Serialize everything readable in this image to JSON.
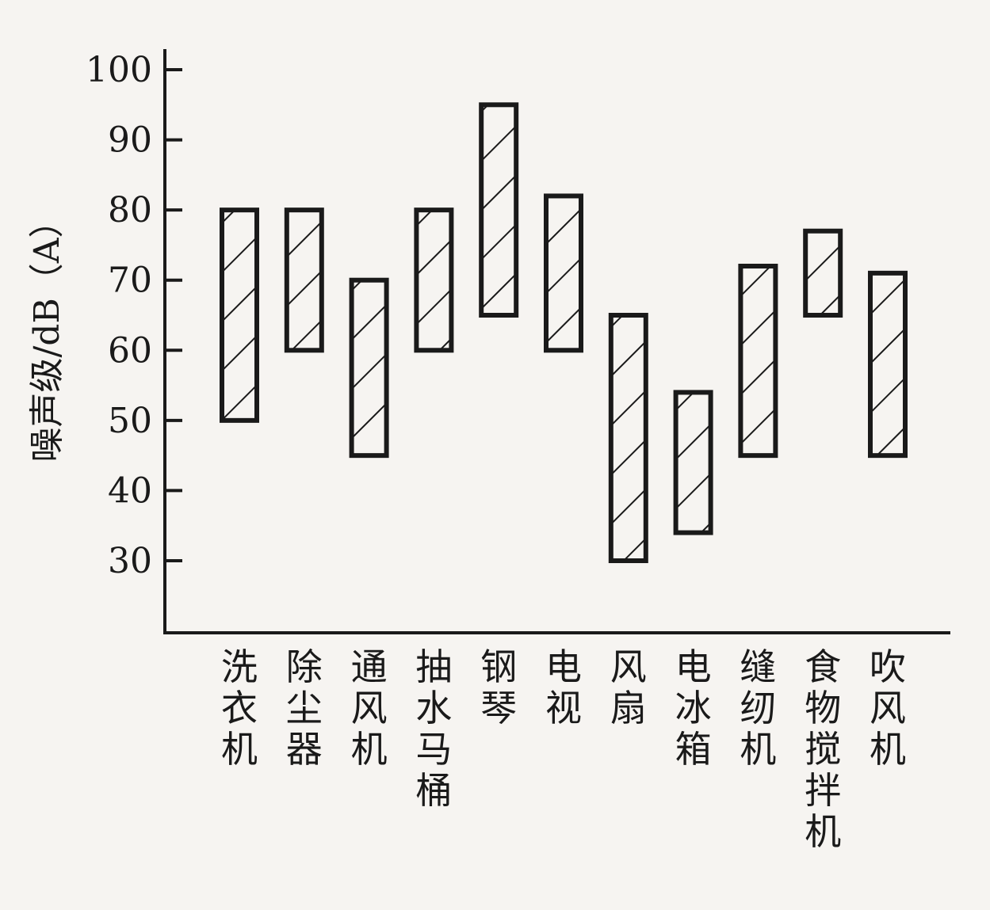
{
  "chart_data": {
    "type": "bar",
    "subtype": "floating-range",
    "ylabel": "噪声级/dB（A）",
    "ylim": [
      20,
      100
    ],
    "yticks": [
      30,
      40,
      50,
      60,
      70,
      80,
      90,
      100
    ],
    "grid": false,
    "legend": "none",
    "fill_pattern": "diagonal-hatch",
    "colors": {
      "stroke": "#1a1a1a",
      "background": "#f6f4f1"
    },
    "categories": [
      "洗衣机",
      "除尘器",
      "通风机",
      "抽水马桶",
      "钢琴",
      "电视",
      "风扇",
      "电冰箱",
      "缝纫机",
      "食物搅拌机",
      "吹风机"
    ],
    "ranges": [
      [
        50,
        80
      ],
      [
        60,
        80
      ],
      [
        45,
        70
      ],
      [
        60,
        80
      ],
      [
        65,
        95
      ],
      [
        60,
        82
      ],
      [
        30,
        65
      ],
      [
        34,
        54
      ],
      [
        45,
        72
      ],
      [
        65,
        77
      ],
      [
        45,
        71
      ]
    ]
  }
}
